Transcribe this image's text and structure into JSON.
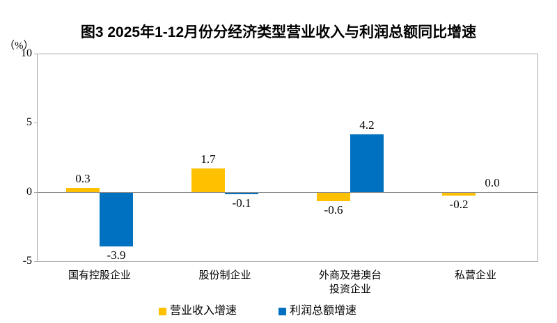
{
  "chart_data": {
    "type": "bar",
    "title": "图3 2025年1-12月份分经济类型营业收入与利润总额同比增速",
    "unit_label": "（%）",
    "categories": [
      "国有控股企业",
      "股份制企业",
      "外商及港澳台\n投资企业",
      "私营企业"
    ],
    "series": [
      {
        "name": "营业收入增速",
        "color": "#FFC000",
        "values": [
          0.3,
          1.7,
          -0.6,
          -0.2
        ]
      },
      {
        "name": "利润总额增速",
        "color": "#0070C0",
        "values": [
          -3.9,
          -0.1,
          4.2,
          0.0
        ]
      }
    ],
    "ylim": [
      -5,
      10
    ],
    "yticks": [
      10,
      5,
      0,
      -5
    ],
    "grid": false,
    "legend_position": "bottom",
    "value_labels": true,
    "value_label_decimals": 1,
    "axis_border_color": "#a6a6a6",
    "zero_line_color": "#8c8c8c"
  }
}
